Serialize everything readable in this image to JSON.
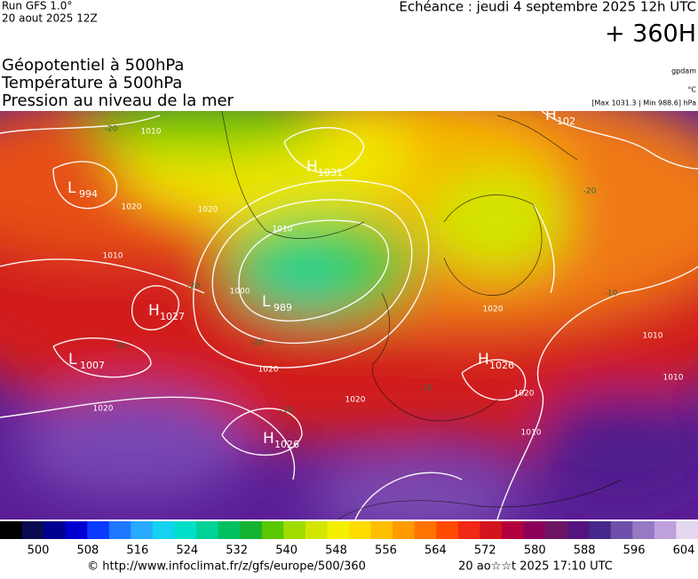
{
  "header": {
    "run": "Run GFS 1.0°",
    "date": "20 aout 2025 12Z",
    "valid": "Echéance : jeudi 4 septembre 2025 12h UTC",
    "lead": "+ 360H",
    "titles": [
      "Géopotentiel à 500hPa",
      "Température à 500hPa",
      "Pression au niveau de la mer"
    ],
    "units": [
      "gpdam",
      "°C",
      "[Max 1031.3 | Min 988.6] hPa"
    ]
  },
  "map": {
    "centers": [
      {
        "letter": "L",
        "value": "994"
      },
      {
        "letter": "H",
        "value": "1031"
      },
      {
        "letter": "L",
        "value": "989"
      },
      {
        "letter": "H",
        "value": "1027"
      },
      {
        "letter": "L",
        "value": "1007"
      },
      {
        "letter": "H",
        "value": "1026"
      },
      {
        "letter": "H",
        "value": "1026"
      },
      {
        "letter": "H",
        "value": "102"
      }
    ],
    "contour_labels": [
      "1010",
      "1020",
      "1010",
      "1020",
      "1020",
      "1000",
      "1010",
      "1020",
      "1020",
      "1020",
      "1010",
      "1010",
      "1020",
      "1010",
      "-20",
      "-20",
      "-20",
      "-20",
      "-10",
      "-10",
      "-10",
      "-10"
    ]
  },
  "colorbar": {
    "labels": [
      "500",
      "508",
      "516",
      "524",
      "532",
      "540",
      "548",
      "556",
      "564",
      "572",
      "580",
      "588",
      "596",
      "604"
    ],
    "colors": [
      "#000000",
      "#0a0a50",
      "#000090",
      "#0000d0",
      "#0a3cff",
      "#1e78ff",
      "#28aaff",
      "#14d2f0",
      "#00e0c8",
      "#00d296",
      "#00c060",
      "#14b432",
      "#5ac800",
      "#a0dc00",
      "#d2e600",
      "#f5f000",
      "#ffdc00",
      "#ffbe00",
      "#ff9b00",
      "#ff7300",
      "#ff4b00",
      "#f02814",
      "#d2141e",
      "#b4003c",
      "#8c005a",
      "#6e1464",
      "#55147d",
      "#46288c",
      "#6e50aa",
      "#9678c3",
      "#bea0dc",
      "#e6d7f0"
    ]
  },
  "footer": {
    "url": "© http://www.infoclimat.fr/z/gfs/europe/500/360",
    "stamp": "20 ao☆☆t 2025 17:10 UTC"
  }
}
